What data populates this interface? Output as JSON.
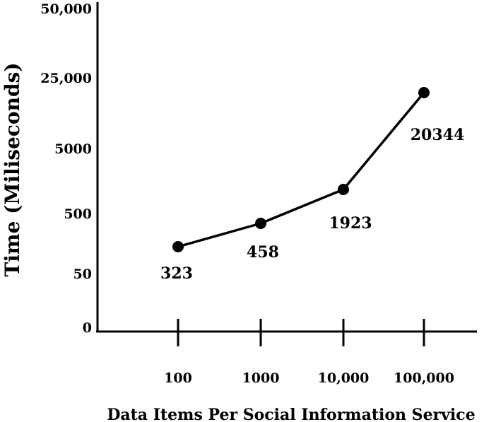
{
  "chart_data": {
    "type": "line",
    "xlabel": "Data Items Per Social Information Service",
    "ylabel": "Time (Miliseconds)",
    "categories": [
      "100",
      "1000",
      "10,000",
      "100,000"
    ],
    "y_tick_labels": [
      "0",
      "50",
      "500",
      "5000",
      "25,000",
      "50,000"
    ],
    "series": [
      {
        "values": [
          323,
          458,
          1923,
          20344
        ],
        "data_labels": [
          "323",
          "458",
          "1923",
          "20344"
        ]
      }
    ],
    "grid": false,
    "legend": "none"
  }
}
